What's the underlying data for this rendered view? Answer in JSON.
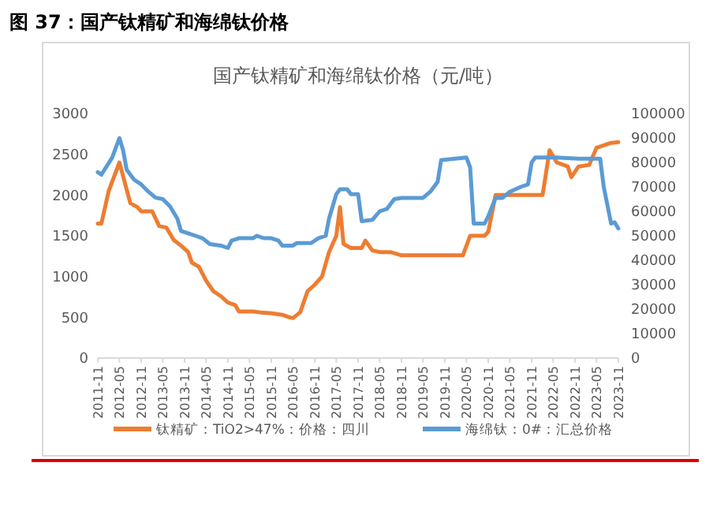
{
  "chart_data": {
    "type": "line",
    "title": "图 37：国产钛精矿和海绵钛价格",
    "subtitle": "国产钛精矿和海绵钛价格（元/吨）",
    "legend": "bottom",
    "marker": "none",
    "line_style": "solid",
    "xlim": [
      "2011-11",
      "2023-11"
    ],
    "xticks": [
      {
        "value": "2011-11",
        "label": "2011-11"
      },
      {
        "value": "2012-05",
        "label": "2012-05"
      },
      {
        "value": "2012-11",
        "label": "2012-11"
      },
      {
        "value": "2013-05",
        "label": "2013-05"
      },
      {
        "value": "2013-11",
        "label": "2013-11"
      },
      {
        "value": "2014-05",
        "label": "2014-05"
      },
      {
        "value": "2014-11",
        "label": "2014-11"
      },
      {
        "value": "2015-05",
        "label": "2015-05"
      },
      {
        "value": "2015-11",
        "label": "2015-11"
      },
      {
        "value": "2016-05",
        "label": "2016-05"
      },
      {
        "value": "2016-11",
        "label": "2016-11"
      },
      {
        "value": "2017-05",
        "label": "2017-05"
      },
      {
        "value": "2017-11",
        "label": "2017-11"
      },
      {
        "value": "2018-05",
        "label": "2018-05"
      },
      {
        "value": "2018-11",
        "label": "2018-11"
      },
      {
        "value": "2019-05",
        "label": "2019-05"
      },
      {
        "value": "2019-11",
        "label": "2019-11"
      },
      {
        "value": "2020-05",
        "label": "2020-05"
      },
      {
        "value": "2020-11",
        "label": "2020-11"
      },
      {
        "value": "2021-05",
        "label": "2021-05"
      },
      {
        "value": "2021-11",
        "label": "2021-11"
      },
      {
        "value": "2022-05",
        "label": "2022-05"
      },
      {
        "value": "2022-11",
        "label": "2022-11"
      },
      {
        "value": "2023-05",
        "label": "2023-05"
      },
      {
        "value": "2023-11",
        "label": "2023-11"
      }
    ],
    "ylim": [
      0,
      3000
    ],
    "yticks": [
      0,
      500,
      1000,
      1500,
      2000,
      2500,
      3000
    ],
    "y2lim": [
      0,
      100000
    ],
    "y2ticks": [
      0,
      10000,
      20000,
      30000,
      40000,
      50000,
      60000,
      70000,
      80000,
      90000,
      100000
    ],
    "series": [
      {
        "name": "钛精矿：TiO2>47%：价格：四川",
        "color": "#ed7d31",
        "x": [
          "2011-11",
          "2011-12",
          "2012-02",
          "2012-05",
          "2012-08",
          "2012-10",
          "2012-11",
          "2013-02",
          "2013-04",
          "2013-06",
          "2013-08",
          "2013-10",
          "2013-12",
          "2014-01",
          "2014-03",
          "2014-05",
          "2014-07",
          "2014-09",
          "2014-11",
          "2015-01",
          "2015-02",
          "2015-06",
          "2015-08",
          "2015-11",
          "2016-02",
          "2016-04",
          "2016-05",
          "2016-07",
          "2016-09",
          "2016-11",
          "2017-01",
          "2017-03",
          "2017-05",
          "2017-06",
          "2017-07",
          "2017-09",
          "2017-12",
          "2018-01",
          "2018-03",
          "2018-05",
          "2018-08",
          "2018-11",
          "2020-04",
          "2020-06",
          "2020-10",
          "2020-11",
          "2021-01",
          "2021-06",
          "2021-12",
          "2022-02",
          "2022-04",
          "2022-06",
          "2022-09",
          "2022-10",
          "2022-12",
          "2023-03",
          "2023-05",
          "2023-07",
          "2023-09",
          "2023-11"
        ],
        "values": [
          1650,
          1650,
          2050,
          2400,
          1900,
          1850,
          1800,
          1800,
          1620,
          1600,
          1450,
          1380,
          1300,
          1170,
          1120,
          950,
          820,
          760,
          680,
          650,
          570,
          570,
          560,
          550,
          530,
          500,
          490,
          560,
          820,
          900,
          1000,
          1300,
          1500,
          1850,
          1400,
          1350,
          1350,
          1440,
          1320,
          1300,
          1300,
          1260,
          1260,
          1500,
          1500,
          1550,
          2000,
          2000,
          2000,
          2000,
          2550,
          2400,
          2350,
          2220,
          2350,
          2370,
          2580,
          2610,
          2640,
          2650
        ]
      },
      {
        "name": "海绵钛：0#：汇总价格",
        "color": "#5b9bd5",
        "axis": "y2",
        "x": [
          "2011-11",
          "2011-12",
          "2012-03",
          "2012-05",
          "2012-06",
          "2012-07",
          "2012-09",
          "2012-11",
          "2013-01",
          "2013-03",
          "2013-05",
          "2013-07",
          "2013-09",
          "2013-10",
          "2013-12",
          "2014-02",
          "2014-04",
          "2014-06",
          "2014-09",
          "2014-11",
          "2014-12",
          "2015-02",
          "2015-06",
          "2015-07",
          "2015-09",
          "2015-11",
          "2016-01",
          "2016-02",
          "2016-05",
          "2016-06",
          "2016-10",
          "2016-12",
          "2017-02",
          "2017-03",
          "2017-05",
          "2017-06",
          "2017-08",
          "2017-09",
          "2017-11",
          "2017-12",
          "2018-03",
          "2018-05",
          "2018-07",
          "2018-09",
          "2018-11",
          "2019-05",
          "2019-07",
          "2019-09",
          "2019-10",
          "2020-05",
          "2020-06",
          "2020-07",
          "2020-10",
          "2020-11",
          "2021-01",
          "2021-03",
          "2021-05",
          "2021-08",
          "2021-10",
          "2021-11",
          "2021-12",
          "2022-06",
          "2022-12",
          "2023-06",
          "2023-07",
          "2023-09",
          "2023-10",
          "2023-11"
        ],
        "values": [
          76000,
          75000,
          82000,
          90000,
          85000,
          77000,
          73000,
          71000,
          68000,
          65600,
          65000,
          62000,
          57000,
          52000,
          51000,
          50000,
          49000,
          46600,
          46000,
          45000,
          48000,
          49000,
          49000,
          50000,
          49000,
          49000,
          48000,
          46000,
          46000,
          47000,
          47000,
          49000,
          50000,
          57000,
          67000,
          69000,
          69000,
          67000,
          67000,
          56000,
          56500,
          60000,
          61000,
          65000,
          65500,
          65500,
          68000,
          72000,
          81000,
          82000,
          78000,
          55000,
          55000,
          58000,
          65500,
          65500,
          68000,
          70000,
          71000,
          80000,
          82000,
          82000,
          81500,
          81500,
          70000,
          55000,
          55500,
          53000
        ]
      }
    ]
  }
}
